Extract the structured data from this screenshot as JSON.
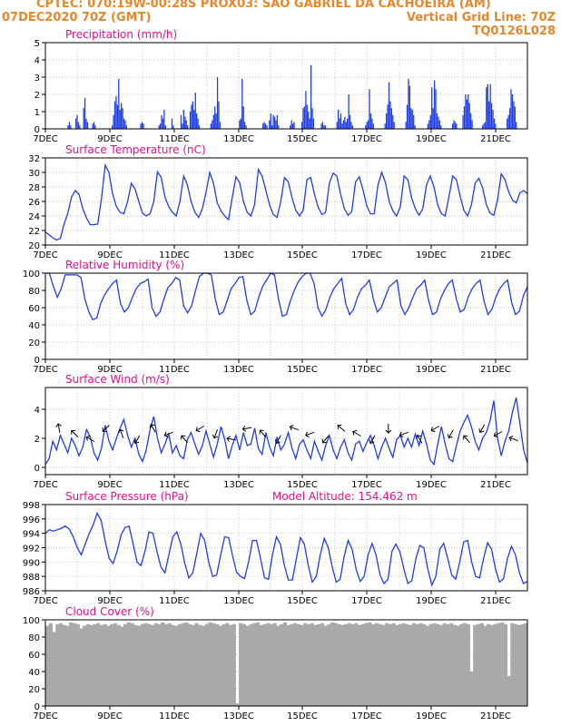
{
  "header": {
    "line1": "CPTEC:   070:19W-00:28S   PROX03: SAO GABRIEL DA CACHOEIRA (AM)",
    "line2_left": "07DEC2020 70Z (GMT)",
    "line2_right": "Vertical Grid Line: 70Z",
    "line3_right": "TQ0126L028"
  },
  "colors": {
    "header": "#e8862a",
    "title": "#e0108a",
    "series": "#1f3fe6",
    "cloud": "#a9a9a9",
    "grid": "#b0b0b0"
  },
  "x_tick_labels": [
    "7DEC",
    "9DEC",
    "11DEC",
    "13DEC",
    "15DEC",
    "17DEC",
    "19DEC",
    "21DEC"
  ],
  "chart_data": [
    {
      "id": "precip",
      "type": "bar",
      "title": "Precipitation  (mm/h)",
      "ylim": [
        0,
        5
      ],
      "yticks": [
        "0",
        "1",
        "2",
        "3",
        "4",
        "5"
      ],
      "values": [
        0,
        0,
        0,
        0,
        0,
        0,
        0,
        0,
        0,
        0,
        0,
        0,
        0,
        0,
        0,
        0,
        0,
        0.2,
        0.4,
        0.2,
        0,
        0,
        0,
        0.6,
        0.8,
        0.4,
        0.2,
        0,
        0,
        1.2,
        1.8,
        0.6,
        0.4,
        0,
        0,
        0,
        0.3,
        0.4,
        0.2,
        0,
        0,
        0,
        0,
        0,
        0,
        0,
        0,
        0,
        0,
        0,
        0,
        0.2,
        0.8,
        1.6,
        1.9,
        1.4,
        2.9,
        1.1,
        1.5,
        1.2,
        0.6,
        0.5,
        0.2,
        0,
        0,
        0,
        0,
        0,
        0,
        0,
        0,
        0,
        0,
        0.3,
        0.4,
        0.3,
        0,
        0,
        0,
        0,
        0,
        0,
        0,
        0,
        0,
        0,
        0,
        0.2,
        0.3,
        0.8,
        0.6,
        1.1,
        0.2,
        0,
        0,
        0,
        0,
        0.6,
        0.2,
        0,
        0,
        0,
        0,
        0,
        0.8,
        0.3,
        1.1,
        0.7,
        0.5,
        0.2,
        0,
        1.0,
        1.4,
        1.6,
        1.1,
        2.1,
        0.9,
        0.6,
        0.2,
        0,
        0,
        0,
        0,
        0,
        0,
        0,
        0,
        0.3,
        0.5,
        0.8,
        1.3,
        0.9,
        3.0,
        1.6,
        0.4,
        0,
        0,
        0,
        0,
        0,
        0,
        0,
        0,
        0,
        0,
        0,
        0,
        0,
        0,
        0.5,
        0.6,
        2.9,
        1.3,
        0.4,
        0.2,
        0,
        0,
        0,
        0,
        0,
        0,
        0,
        0,
        0,
        0,
        0,
        0,
        0.3,
        0.4,
        0.3,
        0.2,
        0,
        0.5,
        0.9,
        0.2,
        0.8,
        0.7,
        0.5,
        0.8,
        0.2,
        0,
        0,
        0,
        0,
        0,
        0,
        0,
        0,
        0.2,
        0.5,
        0.3,
        0.4,
        0,
        0,
        0,
        0,
        0,
        0.4,
        1.2,
        1.3,
        2.2,
        1.4,
        1.0,
        0.6,
        3.7,
        1.2,
        0.6,
        0,
        0,
        0,
        0,
        0,
        0.3,
        0.4,
        0.2,
        0.2,
        0,
        0,
        0,
        0,
        0,
        0,
        0,
        0,
        0.4,
        1.1,
        0.6,
        0.9,
        0.3,
        0.5,
        0.7,
        0.4,
        0.6,
        2.0,
        0.8,
        0.4,
        0.2,
        0,
        0,
        0,
        0,
        0,
        0,
        0,
        0,
        0,
        0.2,
        0.4,
        0.5,
        2.3,
        0.9,
        0.6,
        0.3,
        0,
        0,
        0,
        0,
        0,
        0,
        0,
        0,
        0.3,
        0.9,
        1.4,
        2.7,
        1.6,
        1.2,
        0.8,
        0.4,
        0,
        0,
        0,
        0,
        0,
        0,
        0,
        0,
        0.4,
        1.4,
        2.9,
        2.5,
        1.2,
        1.1,
        0.8,
        0.2,
        0,
        0,
        0,
        0,
        0,
        0,
        0,
        0,
        0,
        0.3,
        0.5,
        0.8,
        2.4,
        1.2,
        2.8,
        2.3,
        0.9,
        0.7,
        0.5,
        0.2,
        0,
        0,
        0,
        0,
        0,
        0,
        0,
        0,
        0.3,
        0.5,
        0.4,
        0.3,
        0,
        0,
        0,
        0,
        0.8,
        1.3,
        2.0,
        1.7,
        2.0,
        1.5,
        0.9,
        0.5,
        0,
        0,
        0,
        0,
        0,
        0,
        0,
        0.2,
        0.3,
        0.4,
        2.4,
        2.6,
        1.6,
        2.6,
        1.5,
        1.1,
        0.6,
        0.3,
        0,
        0,
        0,
        0,
        0,
        0,
        0,
        0,
        0.6,
        0.8,
        1.2,
        2.3,
        2.0,
        1.6,
        1.3,
        0.4,
        0,
        0,
        0,
        0,
        0,
        0,
        0,
        0
      ],
      "grid": true
    },
    {
      "id": "temp",
      "type": "line",
      "title": "Surface Temperature (nC)",
      "ylim": [
        20,
        32
      ],
      "yticks": [
        "20",
        "22",
        "24",
        "26",
        "28",
        "30",
        "32"
      ],
      "values": [
        21.8,
        21.4,
        21.0,
        20.7,
        20.9,
        22.9,
        24.4,
        26.6,
        27.5,
        27.0,
        25.0,
        23.7,
        22.8,
        22.8,
        22.9,
        26.3,
        31.0,
        30.0,
        27.0,
        25.3,
        24.5,
        24.3,
        26.0,
        28.5,
        27.7,
        26.0,
        24.4,
        24.0,
        24.3,
        26.0,
        30.1,
        29.3,
        26.6,
        25.3,
        24.5,
        24.0,
        26.0,
        29.5,
        28.3,
        26.0,
        24.5,
        23.8,
        25.0,
        27.3,
        30.0,
        28.5,
        25.8,
        24.7,
        24.0,
        23.5,
        26.5,
        29.4,
        28.6,
        26.0,
        24.5,
        24.0,
        25.6,
        30.4,
        29.5,
        27.5,
        25.5,
        24.2,
        23.8,
        26.0,
        29.3,
        28.7,
        26.5,
        24.8,
        24.0,
        24.8,
        29.0,
        29.3,
        27.0,
        25.2,
        24.2,
        24.5,
        28.5,
        29.9,
        29.5,
        27.0,
        25.0,
        24.1,
        24.6,
        28.7,
        29.4,
        27.6,
        25.4,
        24.3,
        24.3,
        28.2,
        30.0,
        28.6,
        26.0,
        24.7,
        24.0,
        25.3,
        29.5,
        29.0,
        26.5,
        25.0,
        24.1,
        25.0,
        28.3,
        29.5,
        28.0,
        25.5,
        24.3,
        24.0,
        26.7,
        29.5,
        29.0,
        26.7,
        24.8,
        24.0,
        25.5,
        28.5,
        29.2,
        27.9,
        25.6,
        24.4,
        24.1,
        26.2,
        29.8,
        29.0,
        27.3,
        26.2,
        25.8,
        27.2,
        27.5,
        27.1
      ],
      "grid": true
    },
    {
      "id": "rh",
      "type": "line",
      "title": "Relative Humidity (%)",
      "ylim": [
        0,
        100
      ],
      "yticks": [
        "0",
        "20",
        "40",
        "60",
        "80",
        "100"
      ],
      "values": [
        100,
        100,
        85,
        72,
        82,
        98,
        98,
        98,
        98,
        95,
        70,
        55,
        46,
        48,
        65,
        75,
        82,
        88,
        92,
        65,
        55,
        60,
        72,
        82,
        88,
        90,
        93,
        60,
        50,
        55,
        70,
        83,
        88,
        95,
        92,
        62,
        54,
        62,
        80,
        96,
        100,
        100,
        98,
        70,
        52,
        55,
        68,
        82,
        88,
        95,
        96,
        68,
        52,
        56,
        72,
        85,
        92,
        100,
        98,
        70,
        50,
        52,
        68,
        80,
        90,
        96,
        100,
        100,
        88,
        60,
        50,
        58,
        72,
        82,
        88,
        94,
        65,
        52,
        58,
        72,
        82,
        86,
        92,
        70,
        55,
        60,
        72,
        84,
        88,
        92,
        62,
        52,
        60,
        72,
        82,
        86,
        92,
        68,
        52,
        55,
        70,
        80,
        88,
        92,
        70,
        55,
        58,
        72,
        82,
        88,
        92,
        68,
        52,
        58,
        72,
        82,
        88,
        92,
        66,
        52,
        56,
        74,
        84
      ],
      "grid": true
    },
    {
      "id": "wind",
      "type": "line",
      "title": "Surface Wind (m/s)",
      "ylim": [
        -0.5,
        5.5
      ],
      "yticks": [
        "0",
        "2",
        "4"
      ],
      "ytick_values": [
        0,
        2,
        4
      ],
      "values": [
        0.2,
        0.6,
        1.8,
        1.2,
        2.2,
        1.6,
        1.0,
        2.0,
        1.5,
        0.8,
        1.4,
        2.6,
        2.1,
        1.0,
        0.5,
        1.3,
        2.9,
        1.8,
        1.2,
        2.0,
        2.7,
        3.3,
        2.2,
        1.4,
        2.0,
        0.9,
        0.4,
        1.2,
        2.6,
        3.5,
        2.0,
        1.0,
        1.6,
        2.3,
        1.0,
        1.5,
        0.8,
        0.6,
        1.9,
        2.4,
        1.6,
        0.9,
        1.5,
        2.5,
        1.6,
        0.7,
        1.6,
        2.8,
        1.9,
        0.6,
        1.5,
        2.2,
        1.2,
        2.4,
        1.5,
        1.6,
        2.7,
        1.3,
        0.9,
        2.4,
        1.4,
        0.8,
        2.1,
        1.2,
        1.6,
        2.4,
        1.3,
        0.6,
        1.6,
        1.9,
        1.2,
        0.6,
        1.8,
        1.1,
        0.5,
        1.5,
        2.2,
        1.2,
        0.6,
        1.4,
        1.9,
        1.0,
        0.5,
        1.6,
        1.8,
        1.1,
        1.7,
        2.2,
        1.5,
        0.6,
        1.4,
        2.0,
        1.3,
        0.7,
        1.9,
        2.2,
        1.4,
        2.0,
        1.4,
        2.3,
        1.5,
        2.5,
        1.6,
        0.5,
        0.2,
        1.6,
        2.8,
        1.6,
        0.6,
        0.4,
        1.5,
        2.5,
        3.1,
        3.6,
        2.8,
        1.8,
        1.2,
        2.0,
        2.4,
        3.2,
        4.6,
        2.0,
        0.8,
        1.8,
        2.5,
        3.8,
        4.8,
        3.0,
        1.2,
        0.3
      ],
      "arrows_deg": [
        -10,
        -45,
        -60,
        225,
        -20,
        210,
        -30,
        250,
        -40,
        -120,
        200,
        -80,
        -100,
        -40,
        -150,
        -70,
        -110,
        -140,
        -50,
        -60,
        -150,
        180,
        -110,
        -30,
        -120,
        -150,
        -40,
        -150,
        -120,
        -70
      ],
      "grid": true
    },
    {
      "id": "pressure",
      "type": "line",
      "title": "Surface Pressure (hPa)",
      "annotation": "Model Altitude: 154.462 m",
      "ylim": [
        986,
        998
      ],
      "yticks": [
        "986",
        "988",
        "990",
        "992",
        "994",
        "996",
        "998"
      ],
      "values": [
        994.0,
        994.5,
        994.3,
        994.5,
        994.7,
        995.0,
        994.6,
        993.5,
        992.0,
        991.0,
        992.5,
        994.0,
        995.2,
        996.8,
        995.8,
        993.0,
        990.5,
        989.8,
        991.5,
        993.8,
        994.8,
        995.0,
        992.6,
        990.0,
        989.5,
        991.5,
        994.2,
        994.0,
        991.5,
        989.3,
        988.5,
        991.0,
        993.5,
        994.2,
        992.5,
        989.8,
        987.8,
        988.5,
        991.2,
        994.0,
        993.0,
        990.0,
        988.0,
        988.2,
        991.0,
        993.5,
        993.4,
        990.8,
        988.6,
        988.0,
        987.7,
        990.0,
        993.0,
        993.0,
        990.5,
        987.8,
        987.6,
        991.0,
        993.5,
        992.5,
        989.5,
        987.5,
        987.5,
        990.5,
        993.4,
        992.5,
        989.5,
        987.2,
        988.0,
        991.0,
        993.3,
        992.0,
        989.3,
        987.2,
        987.6,
        990.8,
        993.0,
        991.8,
        989.0,
        987.3,
        988.0,
        991.0,
        992.6,
        991.0,
        988.2,
        987.0,
        987.6,
        991.5,
        992.5,
        991.4,
        989.0,
        987.0,
        987.4,
        990.5,
        992.3,
        992.0,
        989.0,
        986.8,
        988.0,
        991.8,
        992.6,
        990.5,
        988.2,
        987.6,
        990.0,
        992.8,
        993.0,
        990.0,
        988.0,
        987.8,
        990.5,
        992.7,
        991.8,
        989.0,
        987.2,
        987.7,
        990.5,
        992.2,
        991.0,
        988.5,
        987.0,
        987.3
      ],
      "grid": true
    },
    {
      "id": "cloud",
      "type": "area",
      "title": "Cloud Cover (%)",
      "ylim": [
        0,
        100
      ],
      "yticks": [
        "0",
        "20",
        "40",
        "60",
        "80",
        "100"
      ],
      "values": [
        93,
        96,
        86,
        95,
        96,
        94,
        93,
        97,
        96,
        95,
        90,
        93,
        95,
        94,
        95,
        96,
        94,
        95,
        93,
        95,
        96,
        94,
        92,
        95,
        97,
        96,
        94,
        93,
        95,
        96,
        95,
        94,
        96,
        95,
        97,
        95,
        96,
        94,
        93,
        95,
        96,
        97,
        95,
        94,
        96,
        94,
        93,
        95,
        97,
        96,
        95,
        93,
        95,
        96,
        94,
        95,
        3,
        96,
        95,
        93,
        95,
        96,
        97,
        94,
        95,
        96,
        95,
        96,
        93,
        95,
        97,
        94,
        95,
        96,
        95,
        94,
        96,
        95,
        96,
        94,
        95,
        96,
        93,
        95,
        97,
        96,
        95,
        94,
        95,
        96,
        95,
        96,
        94,
        95,
        96,
        97,
        95,
        96,
        95,
        94,
        96,
        95,
        96,
        94,
        95,
        96,
        95,
        94,
        96,
        95,
        96,
        95,
        93,
        95,
        96,
        95,
        94,
        96,
        95,
        96,
        94,
        93,
        95,
        96,
        95,
        40,
        94,
        95,
        96,
        93,
        95,
        94,
        95,
        96,
        97,
        95,
        35,
        96,
        95,
        94,
        95,
        96
      ],
      "grid": true
    }
  ]
}
